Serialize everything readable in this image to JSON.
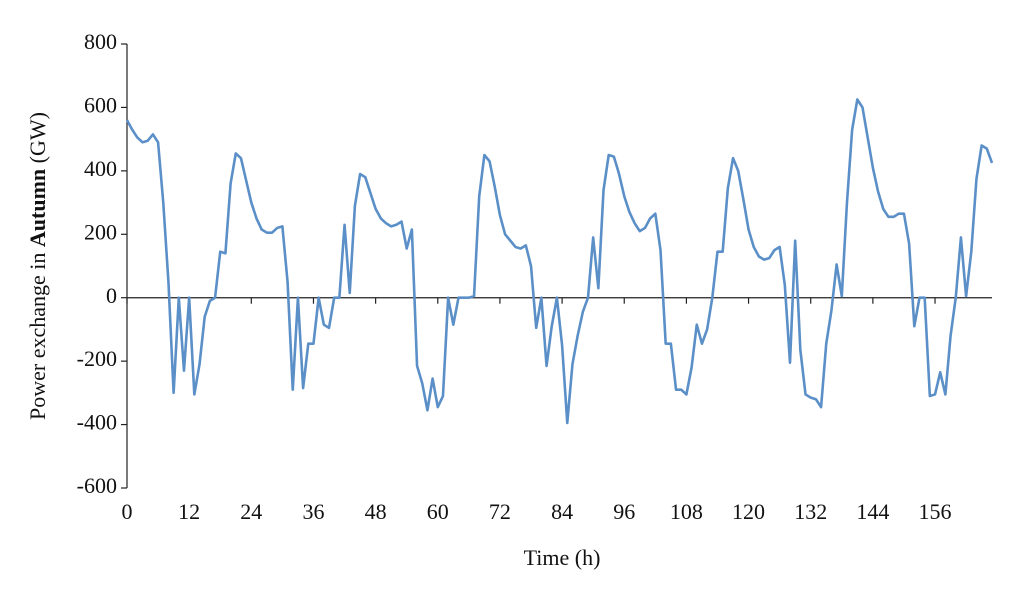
{
  "chart_data": {
    "type": "line",
    "xlabel": "Time (h)",
    "ylabel": [
      "Power exchange in ",
      "Autumn",
      " (GW)"
    ],
    "x": [
      0,
      1,
      2,
      3,
      4,
      5,
      6,
      7,
      8,
      9,
      10,
      11,
      12,
      13,
      14,
      15,
      16,
      17,
      18,
      19,
      20,
      21,
      22,
      23,
      24,
      25,
      26,
      27,
      28,
      29,
      30,
      31,
      32,
      33,
      34,
      35,
      36,
      37,
      38,
      39,
      40,
      41,
      42,
      43,
      44,
      45,
      46,
      47,
      48,
      49,
      50,
      51,
      52,
      53,
      54,
      55,
      56,
      57,
      58,
      59,
      60,
      61,
      62,
      63,
      64,
      65,
      66,
      67,
      68,
      69,
      70,
      71,
      72,
      73,
      74,
      75,
      76,
      77,
      78,
      79,
      80,
      81,
      82,
      83,
      84,
      85,
      86,
      87,
      88,
      89,
      90,
      91,
      92,
      93,
      94,
      95,
      96,
      97,
      98,
      99,
      100,
      101,
      102,
      103,
      104,
      105,
      106,
      107,
      108,
      109,
      110,
      111,
      112,
      113,
      114,
      115,
      116,
      117,
      118,
      119,
      120,
      121,
      122,
      123,
      124,
      125,
      126,
      127,
      128,
      129,
      130,
      131,
      132,
      133,
      134,
      135,
      136,
      137,
      138,
      139,
      140,
      141,
      142,
      143,
      144,
      145,
      146,
      147,
      148,
      149,
      150,
      151,
      152,
      153,
      154,
      155,
      156,
      157,
      158,
      159,
      160,
      161,
      162,
      163,
      164,
      165,
      166,
      167
    ],
    "series": [
      {
        "name": "Power exchange",
        "color": "#5b8fc7",
        "values": [
          560,
          530,
          505,
          490,
          495,
          515,
          490,
          300,
          50,
          -300,
          0,
          -230,
          0,
          -305,
          -210,
          -60,
          -10,
          0,
          145,
          140,
          360,
          455,
          440,
          370,
          300,
          250,
          215,
          205,
          205,
          220,
          225,
          50,
          -290,
          0,
          -285,
          -145,
          -145,
          0,
          -85,
          -95,
          0,
          0,
          230,
          15,
          290,
          390,
          380,
          330,
          280,
          250,
          235,
          225,
          230,
          240,
          155,
          215,
          -215,
          -270,
          -355,
          -255,
          -345,
          -310,
          0,
          -85,
          0,
          0,
          0,
          5,
          320,
          450,
          430,
          350,
          260,
          200,
          180,
          160,
          155,
          165,
          100,
          -95,
          0,
          -215,
          -90,
          0,
          -150,
          -395,
          -210,
          -120,
          -45,
          0,
          190,
          30,
          340,
          450,
          445,
          390,
          320,
          270,
          235,
          210,
          220,
          250,
          265,
          150,
          -145,
          -145,
          -290,
          -290,
          -305,
          -220,
          -85,
          -145,
          -100,
          0,
          145,
          145,
          345,
          440,
          400,
          310,
          215,
          160,
          130,
          120,
          125,
          150,
          160,
          40,
          -205,
          180,
          -165,
          -305,
          -315,
          -320,
          -345,
          -145,
          -40,
          105,
          5,
          300,
          530,
          625,
          600,
          505,
          410,
          335,
          280,
          255,
          255,
          265,
          265,
          170,
          -90,
          0,
          0,
          -310,
          -305,
          -235,
          -305,
          -120,
          0,
          190,
          5,
          145,
          375,
          480,
          470,
          425
        ]
      }
    ],
    "xlim": [
      0,
      167
    ],
    "xticks": [
      0,
      12,
      24,
      36,
      48,
      60,
      72,
      84,
      96,
      108,
      120,
      132,
      144,
      156
    ],
    "ylim": [
      -600,
      800
    ],
    "yticks": [
      -600,
      -400,
      -200,
      0,
      200,
      400,
      600,
      800
    ]
  }
}
